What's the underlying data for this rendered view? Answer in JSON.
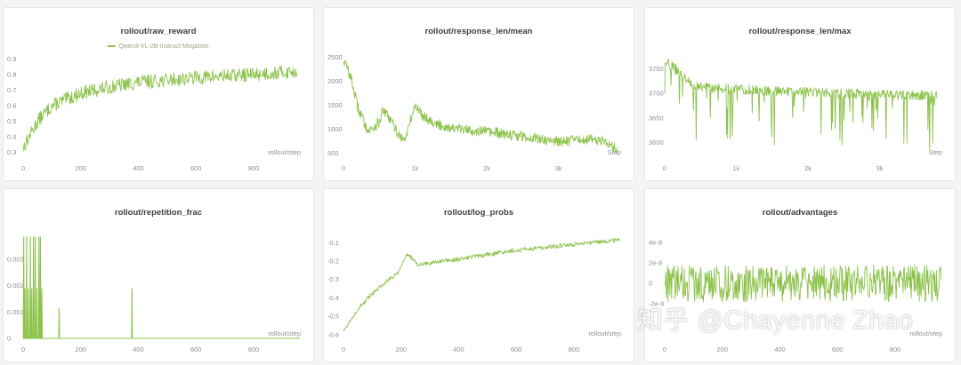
{
  "series_color": "#8cc24a",
  "watermark": "知乎 @Chayenne Zhao",
  "chart_data": [
    {
      "id": "raw_reward",
      "type": "line",
      "title": "rollout/raw_reward",
      "legend": [
        "Qwen3-VL-2B-Instruct-Megatron"
      ],
      "xlabel": "rollout/step",
      "xlim": [
        0,
        970
      ],
      "ylim": [
        0.27,
        0.93
      ],
      "xticks": [
        0,
        200,
        400,
        600,
        800
      ],
      "xtick_labels": [
        "0",
        "200",
        "400",
        "600",
        "800"
      ],
      "yticks": [
        0.3,
        0.4,
        0.5,
        0.6,
        0.7,
        0.8,
        0.9
      ],
      "ytick_labels": [
        "0.3",
        "0.4",
        "0.5",
        "0.6",
        "0.7",
        "0.8",
        "0.9"
      ],
      "trend": [
        [
          0,
          0.33
        ],
        [
          50,
          0.5
        ],
        [
          100,
          0.6
        ],
        [
          200,
          0.68
        ],
        [
          300,
          0.72
        ],
        [
          400,
          0.75
        ],
        [
          600,
          0.78
        ],
        [
          800,
          0.8
        ],
        [
          950,
          0.82
        ]
      ],
      "noise": 0.045,
      "n": 480
    },
    {
      "id": "response_len_mean",
      "type": "line",
      "title": "rollout/response_len/mean",
      "xlabel": "Step",
      "xlim": [
        0,
        3900
      ],
      "ylim": [
        420,
        2560
      ],
      "xticks": [
        0,
        1000,
        2000,
        3000
      ],
      "xtick_labels": [
        "0",
        "1k",
        "2k",
        "3k"
      ],
      "yticks": [
        500,
        1000,
        1500,
        2000,
        2500
      ],
      "ytick_labels": [
        "500",
        "1000",
        "1500",
        "2000",
        "2500"
      ],
      "trend": [
        [
          0,
          2450
        ],
        [
          100,
          2100
        ],
        [
          200,
          1450
        ],
        [
          350,
          950
        ],
        [
          500,
          1150
        ],
        [
          550,
          1400
        ],
        [
          650,
          1200
        ],
        [
          750,
          950
        ],
        [
          850,
          750
        ],
        [
          1000,
          1500
        ],
        [
          1100,
          1300
        ],
        [
          1300,
          1100
        ],
        [
          1600,
          1000
        ],
        [
          2000,
          950
        ],
        [
          2500,
          850
        ],
        [
          3000,
          750
        ],
        [
          3500,
          800
        ],
        [
          3700,
          720
        ],
        [
          3820,
          560
        ]
      ],
      "noise": 110,
      "n": 560
    },
    {
      "id": "response_len_max",
      "type": "line",
      "title": "rollout/response_len/max",
      "xlabel": "Step",
      "xlim": [
        0,
        3900
      ],
      "ylim": [
        3570,
        3780
      ],
      "xticks": [
        0,
        1000,
        2000,
        3000
      ],
      "xtick_labels": [
        "0",
        "1k",
        "2k",
        "3k"
      ],
      "yticks": [
        3600,
        3650,
        3700,
        3750
      ],
      "ytick_labels": [
        "3600",
        "3650",
        "3700",
        "3750"
      ],
      "trend": [
        [
          0,
          3765
        ],
        [
          200,
          3745
        ],
        [
          400,
          3715
        ],
        [
          800,
          3710
        ],
        [
          1500,
          3705
        ],
        [
          2500,
          3700
        ],
        [
          3800,
          3695
        ]
      ],
      "noise": 10,
      "spikes_down": 0.12,
      "spike_depth": 110,
      "n": 520
    },
    {
      "id": "repetition_frac",
      "type": "line",
      "title": "rollout/repetition_frac",
      "xlabel": "rollout/step",
      "xlim": [
        0,
        970
      ],
      "ylim": [
        0,
        0.0039
      ],
      "xticks": [
        0,
        200,
        400,
        600,
        800
      ],
      "xtick_labels": [
        "0",
        "200",
        "400",
        "600",
        "800"
      ],
      "yticks": [
        0,
        0.001,
        0.002,
        0.003
      ],
      "ytick_labels": [
        "0",
        "0.001",
        "0.002",
        "0.003"
      ],
      "spikes": [
        [
          2,
          0.00385
        ],
        [
          6,
          0.0019
        ],
        [
          12,
          0.00385
        ],
        [
          18,
          0.0019
        ],
        [
          25,
          0.00385
        ],
        [
          30,
          0.0019
        ],
        [
          36,
          0.00385
        ],
        [
          42,
          0.00385
        ],
        [
          48,
          0.0019
        ],
        [
          55,
          0.00385
        ],
        [
          60,
          0.00385
        ],
        [
          65,
          0.0019
        ],
        [
          125,
          0.00115
        ],
        [
          378,
          0.0019
        ]
      ]
    },
    {
      "id": "log_probs",
      "type": "line",
      "title": "rollout/log_probs",
      "xlabel": "rollout/step",
      "xlim": [
        0,
        970
      ],
      "ylim": [
        -0.62,
        -0.06
      ],
      "xticks": [
        0,
        200,
        400,
        600,
        800
      ],
      "xtick_labels": [
        "0",
        "200",
        "400",
        "600",
        "800"
      ],
      "yticks": [
        -0.6,
        -0.5,
        -0.4,
        -0.3,
        -0.2,
        -0.1
      ],
      "ytick_labels": [
        "-0.6",
        "-0.5",
        "-0.4",
        "-0.3",
        "-0.2",
        "-0.1"
      ],
      "trend": [
        [
          0,
          -0.58
        ],
        [
          50,
          -0.46
        ],
        [
          100,
          -0.38
        ],
        [
          150,
          -0.31
        ],
        [
          190,
          -0.26
        ],
        [
          220,
          -0.16
        ],
        [
          260,
          -0.22
        ],
        [
          400,
          -0.19
        ],
        [
          600,
          -0.14
        ],
        [
          800,
          -0.11
        ],
        [
          960,
          -0.085
        ]
      ],
      "noise": 0.012,
      "n": 480
    },
    {
      "id": "advantages",
      "type": "line",
      "title": "rollout/advantages",
      "xlabel": "rollout/step",
      "xlim": [
        0,
        970
      ],
      "ylim": [
        -5.4e-09,
        4.7e-09
      ],
      "xticks": [
        0,
        200,
        400,
        600,
        800
      ],
      "xtick_labels": [
        "0",
        "200",
        "400",
        "600",
        "800"
      ],
      "yticks": [
        4e-09,
        2e-09,
        0,
        -2e-09
      ],
      "ytick_labels": [
        "4e-9",
        "2e-9",
        "0",
        "-2e-9"
      ],
      "trend": [
        [
          0,
          0
        ],
        [
          960,
          0
        ]
      ],
      "noise": 1.8e-09,
      "n": 480
    }
  ]
}
